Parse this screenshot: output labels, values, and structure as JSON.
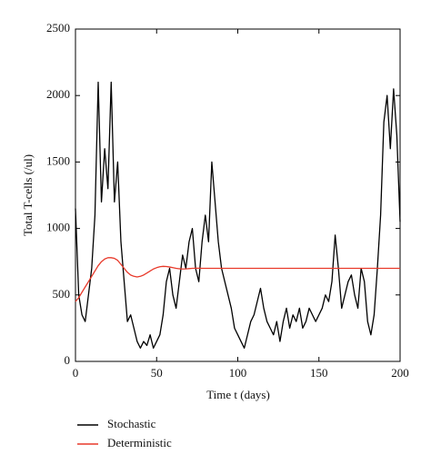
{
  "chart_data": {
    "type": "line",
    "xlabel": "Time t (days)",
    "ylabel": "Total T-cells (/ul)",
    "x": [
      0,
      2,
      4,
      6,
      8,
      10,
      12,
      14,
      16,
      18,
      20,
      22,
      24,
      26,
      28,
      30,
      32,
      34,
      36,
      38,
      40,
      42,
      44,
      46,
      48,
      50,
      52,
      54,
      56,
      58,
      60,
      62,
      64,
      66,
      68,
      70,
      72,
      74,
      76,
      78,
      80,
      82,
      84,
      86,
      88,
      90,
      92,
      94,
      96,
      98,
      100,
      102,
      104,
      106,
      108,
      110,
      112,
      114,
      116,
      118,
      120,
      122,
      124,
      126,
      128,
      130,
      132,
      134,
      136,
      138,
      140,
      142,
      144,
      146,
      148,
      150,
      152,
      154,
      156,
      158,
      160,
      162,
      164,
      166,
      168,
      170,
      172,
      174,
      176,
      178,
      180,
      182,
      184,
      186,
      188,
      190,
      192,
      194,
      196,
      198,
      200
    ],
    "series": [
      {
        "name": "Stochastic",
        "color": "#000000",
        "values": [
          1150,
          500,
          350,
          300,
          500,
          700,
          1100,
          2100,
          1200,
          1600,
          1300,
          2100,
          1200,
          1500,
          900,
          600,
          300,
          350,
          250,
          150,
          100,
          150,
          120,
          200,
          100,
          150,
          200,
          350,
          600,
          700,
          500,
          400,
          600,
          800,
          700,
          900,
          1000,
          700,
          600,
          900,
          1100,
          900,
          1500,
          1200,
          900,
          700,
          600,
          500,
          400,
          250,
          200,
          150,
          100,
          200,
          300,
          350,
          450,
          550,
          400,
          300,
          250,
          200,
          300,
          150,
          300,
          400,
          250,
          350,
          300,
          400,
          250,
          300,
          400,
          350,
          300,
          350,
          400,
          500,
          450,
          600,
          950,
          700,
          400,
          500,
          600,
          650,
          500,
          400,
          700,
          600,
          300,
          200,
          350,
          700,
          1100,
          1800,
          2000,
          1600,
          2050,
          1700,
          1050
        ]
      },
      {
        "name": "Deterministic",
        "color": "#e8392a",
        "values": [
          450,
          480,
          520,
          560,
          600,
          640,
          680,
          720,
          750,
          770,
          780,
          780,
          775,
          760,
          730,
          700,
          670,
          650,
          640,
          635,
          640,
          650,
          665,
          680,
          695,
          705,
          712,
          715,
          714,
          710,
          705,
          700,
          697,
          695,
          696,
          698,
          700,
          701,
          701,
          700,
          700,
          700,
          700,
          700,
          700,
          700,
          700,
          700,
          700,
          700,
          700,
          700,
          700,
          700,
          700,
          700,
          700,
          700,
          700,
          700,
          700,
          700,
          700,
          700,
          700,
          700,
          700,
          700,
          700,
          700,
          700,
          700,
          700,
          700,
          700,
          700,
          700,
          700,
          700,
          700,
          700,
          700,
          700,
          700,
          700,
          700,
          700,
          700,
          700,
          700,
          700,
          700,
          700,
          700,
          700,
          700,
          700,
          700,
          700,
          700,
          700
        ]
      }
    ],
    "xlim": [
      0,
      200
    ],
    "xticks": [
      0,
      50,
      100,
      150,
      200
    ],
    "ylim": [
      0,
      2500
    ],
    "yticks": [
      0,
      500,
      1000,
      1500,
      2000,
      2500
    ]
  }
}
